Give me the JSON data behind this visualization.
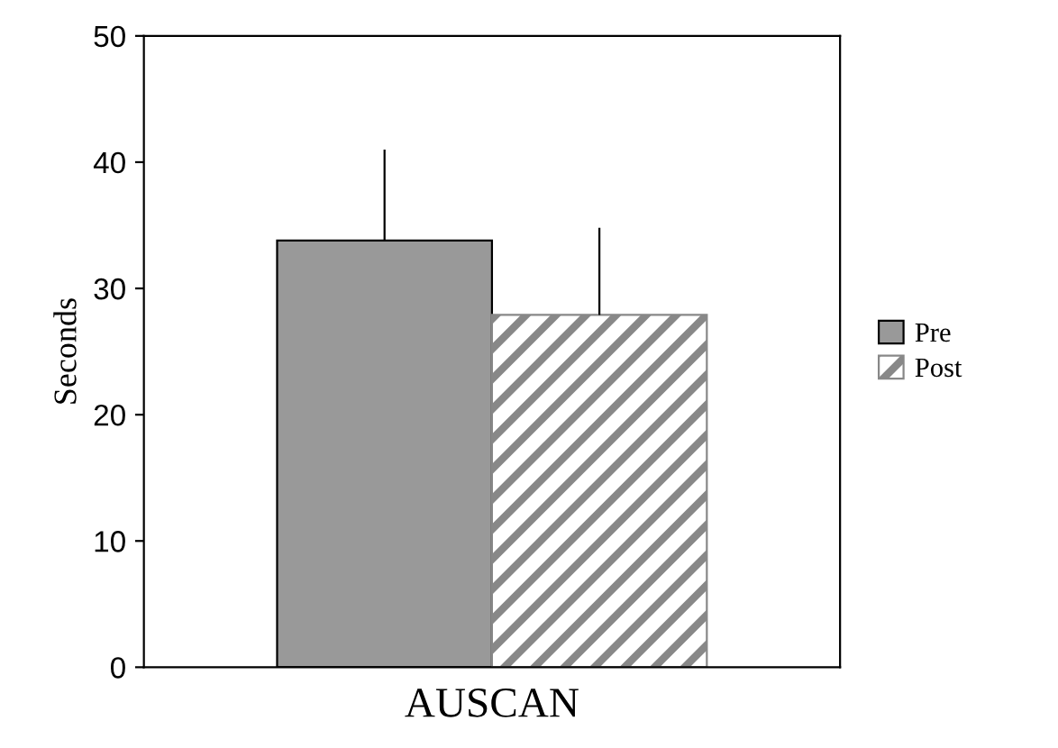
{
  "chart_data": {
    "type": "bar",
    "ylabel": "Seconds",
    "categories": [
      "AUSCAN"
    ],
    "series": [
      {
        "name": "Pre",
        "color": "#999999",
        "values": [
          33.8
        ],
        "errors": [
          [
            33.8,
            41.0
          ]
        ]
      },
      {
        "name": "Post",
        "color": "#888888",
        "values": [
          27.9
        ],
        "errors": [
          [
            27.9,
            34.8
          ]
        ]
      }
    ],
    "ylim": [
      0,
      50
    ],
    "yticks": [
      0,
      10,
      20,
      30,
      40,
      50
    ],
    "grid": false,
    "legend": "right"
  }
}
